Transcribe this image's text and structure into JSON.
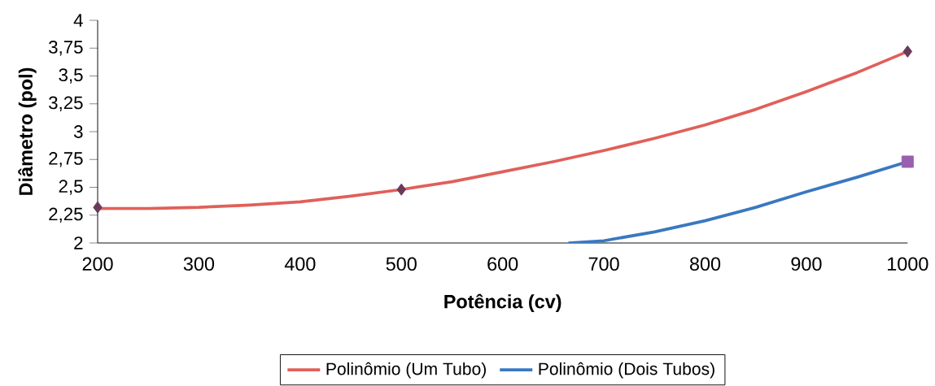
{
  "chart_data": {
    "type": "line",
    "xlabel": "Potência (cv)",
    "ylabel": "Diâmetro (pol)",
    "xlim": [
      200,
      1000
    ],
    "ylim": [
      2,
      4
    ],
    "xticks": [
      200,
      300,
      400,
      500,
      600,
      700,
      800,
      900,
      1000
    ],
    "yticks": [
      2,
      {
        "value": 2.25,
        "label": "2,25"
      },
      {
        "value": 2.5,
        "label": "2,5"
      },
      {
        "value": 2.75,
        "label": "2,75"
      },
      3,
      {
        "value": 3.25,
        "label": "3,25"
      },
      {
        "value": 3.5,
        "label": "3,5"
      },
      {
        "value": 3.75,
        "label": "3,75"
      },
      4
    ],
    "legend": "bottom",
    "grid": false,
    "line_style": "solid",
    "series": [
      {
        "name": "Polinômio (Um Tubo)",
        "color": "#e0605a",
        "marker": "none",
        "x": [
          200,
          250,
          300,
          350,
          400,
          450,
          500,
          550,
          600,
          650,
          700,
          750,
          800,
          850,
          900,
          950,
          1000
        ],
        "values": [
          2.31,
          2.31,
          2.32,
          2.34,
          2.37,
          2.42,
          2.48,
          2.55,
          2.64,
          2.73,
          2.83,
          2.94,
          3.06,
          3.2,
          3.36,
          3.53,
          3.72
        ]
      },
      {
        "name": "Polinômio (Dois Tubos)",
        "color": "#3a78c0",
        "marker": "none",
        "x": [
          665,
          700,
          750,
          800,
          850,
          900,
          950,
          1000
        ],
        "values": [
          2.0,
          2.02,
          2.1,
          2.2,
          2.32,
          2.46,
          2.59,
          2.73
        ]
      },
      {
        "type": "scatter",
        "color": "#6a3a5a",
        "marker": "diamond",
        "x": [
          200,
          500,
          1000
        ],
        "values": [
          2.32,
          2.48,
          3.72
        ]
      },
      {
        "type": "scatter",
        "color": "#9a60b0",
        "marker": "square",
        "x": [
          1000
        ],
        "values": [
          2.73
        ]
      }
    ]
  }
}
